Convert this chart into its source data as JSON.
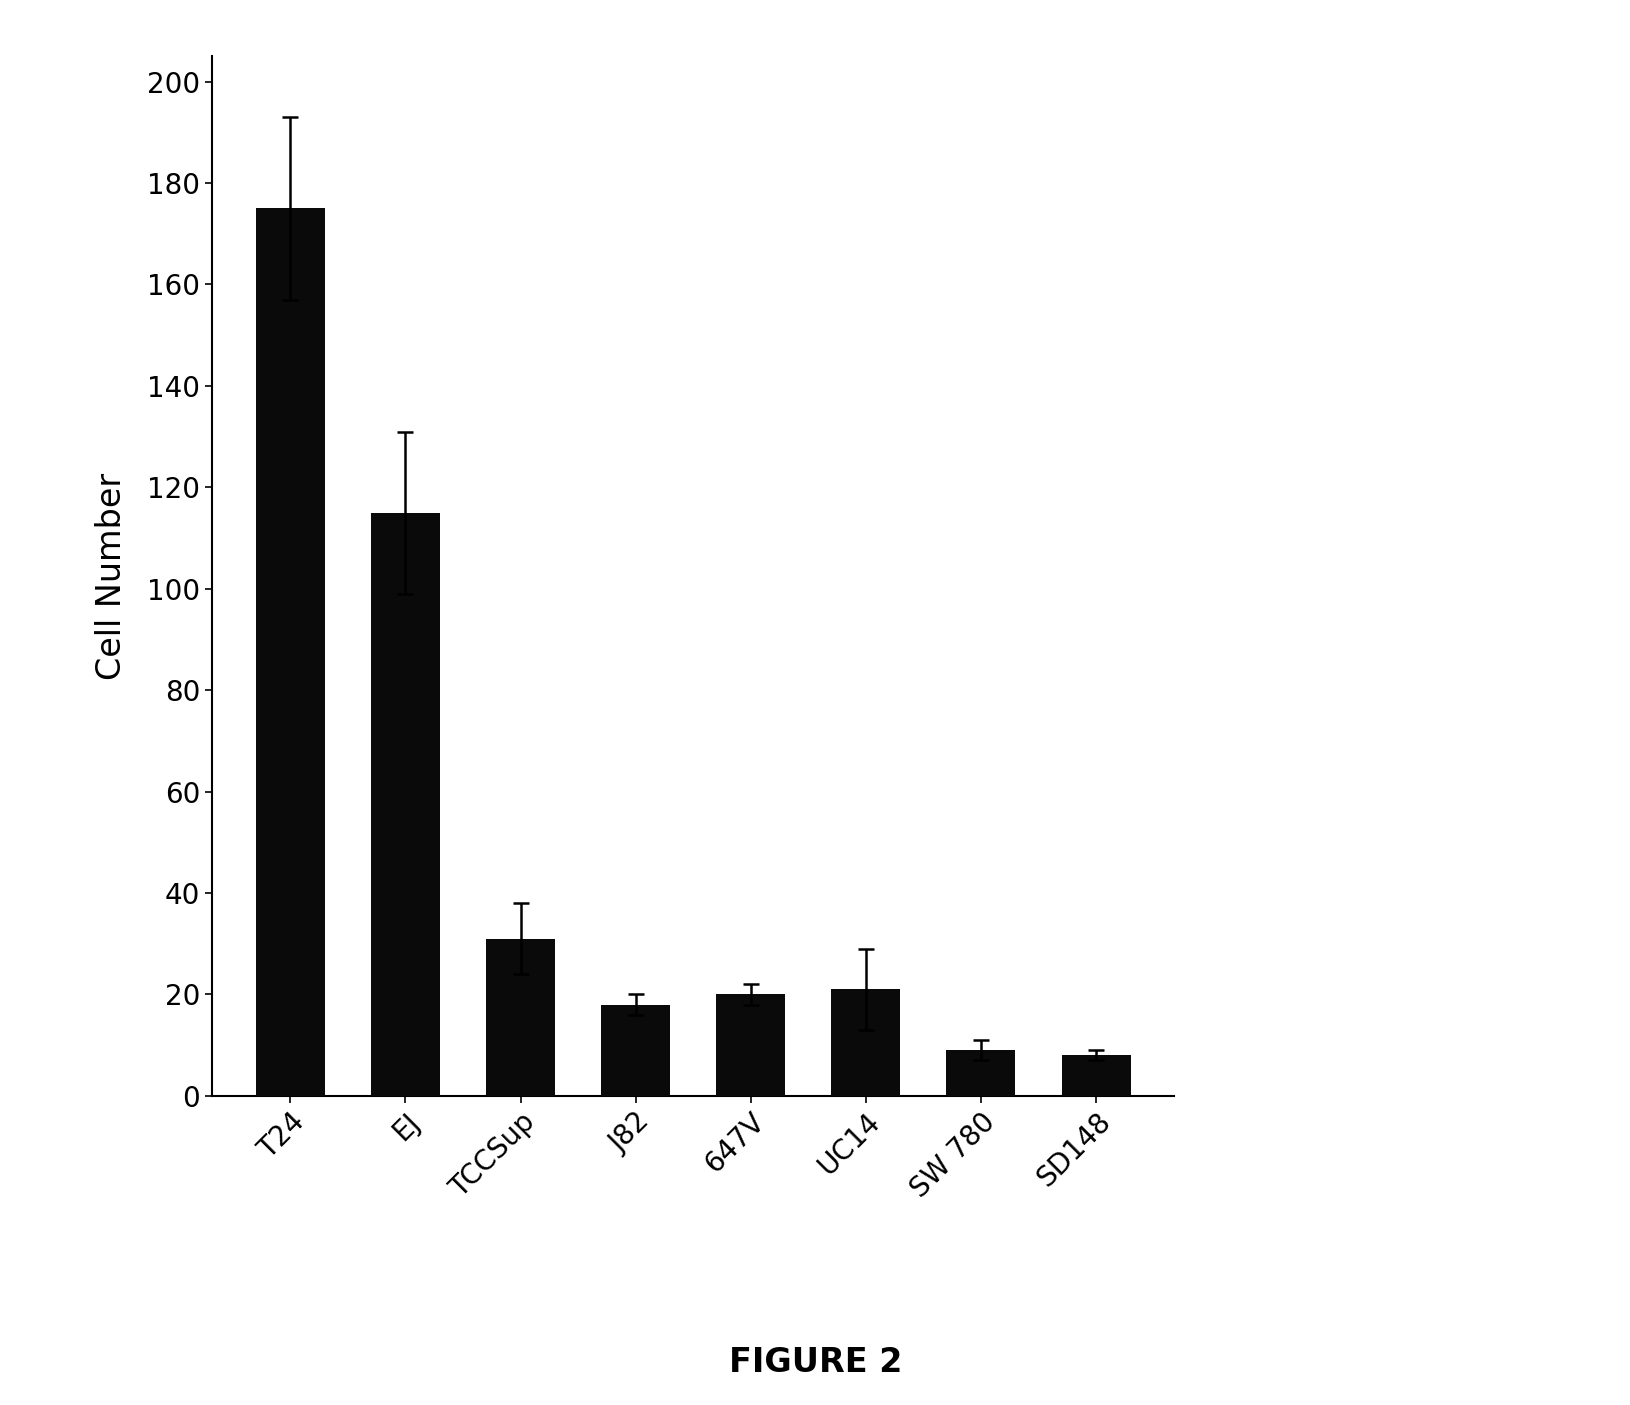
{
  "categories": [
    "T24",
    "EJ",
    "TCCSup",
    "J82",
    "647V",
    "UC14",
    "SW 780",
    "SD148"
  ],
  "values": [
    175,
    115,
    31,
    18,
    20,
    21,
    9,
    8
  ],
  "errors": [
    18,
    16,
    7,
    2,
    2,
    8,
    2,
    1
  ],
  "bar_color": "#0a0a0a",
  "ylabel": "Cell Number",
  "ylabel_fontsize": 24,
  "tick_fontsize": 20,
  "xlabel_fontsize": 20,
  "ylim": [
    0,
    205
  ],
  "yticks": [
    0,
    20,
    40,
    60,
    80,
    100,
    120,
    140,
    160,
    180,
    200
  ],
  "figure_caption": "FIGURE 2",
  "caption_fontsize": 24,
  "background_color": "#ffffff",
  "bar_width": 0.6,
  "capsize": 6,
  "elinewidth": 1.8,
  "ecapthick": 1.8,
  "spine_linewidth": 1.5,
  "label_rotation": 45
}
